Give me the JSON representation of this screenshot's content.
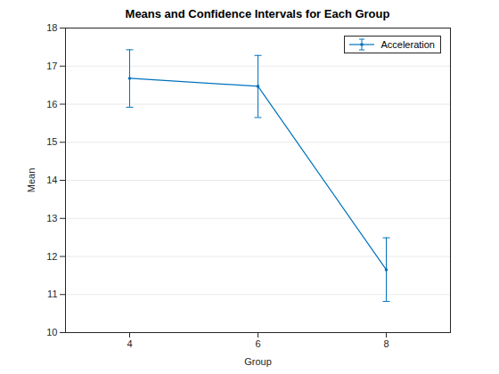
{
  "chart_data": {
    "type": "line",
    "title": "Means and Confidence Intervals for Each Group",
    "x_label": "Group",
    "y_label": "Mean",
    "x": [
      4,
      6,
      8
    ],
    "series": [
      {
        "name": "Acceleration",
        "color": "#0072bd",
        "marker": "point",
        "line_style": "solid",
        "values": [
          16.68,
          16.47,
          11.65
        ],
        "lower": [
          15.92,
          15.65,
          10.82
        ],
        "upper": [
          17.43,
          17.28,
          12.49
        ]
      }
    ],
    "xlim": [
      3,
      9
    ],
    "xticks": [
      4,
      6,
      8
    ],
    "ylim": [
      10,
      18
    ],
    "yticks": [
      10,
      11,
      12,
      13,
      14,
      15,
      16,
      17,
      18
    ],
    "grid": true,
    "legend": "northeast"
  }
}
